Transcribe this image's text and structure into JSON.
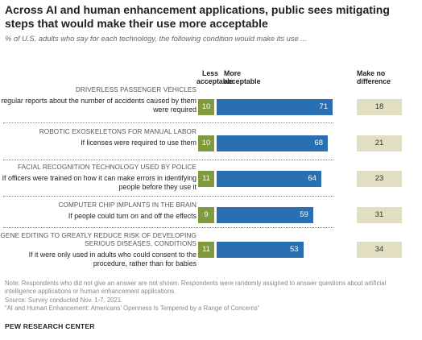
{
  "title": "Across AI and human enhancement applications, public sees mitigating steps that would make their use more acceptable",
  "subtitle": "% of U.S. adults who say for each technology, the following condition would make its use ...",
  "headers": {
    "less": "Less acceptable",
    "more": "More acceptable",
    "no_diff": "Make no difference"
  },
  "colors": {
    "less": "#7f9b3d",
    "more": "#2a6fb1",
    "no_diff": "#e2dec2"
  },
  "chart_data": {
    "type": "bar",
    "categories": [
      "DRIVERLESS PASSENGER VEHICLES",
      "ROBOTIC EXOSKELETONS FOR MANUAL LABOR",
      "FACIAL RECOGNITION TECHNOLOGY USED BY POLICE",
      "COMPUTER CHIP IMPLANTS IN THE BRAIN",
      "GENE EDITING TO GREATLY REDUCE RISK OF DEVELOPING SERIOUS DISEASES, CONDITIONS"
    ],
    "conditions": [
      "If regular reports about the number of accidents caused by them were required",
      "If licenses were required to use them",
      "If officers were trained on how it can make errors in identifying people before they use it",
      "If people could turn on and off the effects",
      "If it were only used in adults who could consent to the procedure, rather than for babies"
    ],
    "series": [
      {
        "name": "Less acceptable",
        "values": [
          10,
          10,
          11,
          9,
          11
        ]
      },
      {
        "name": "More acceptable",
        "values": [
          71,
          68,
          64,
          59,
          53
        ]
      },
      {
        "name": "Make no difference",
        "values": [
          18,
          21,
          23,
          31,
          34
        ]
      }
    ]
  },
  "notes": [
    "Note: Respondents who did not give an answer are not shown. Respondents were randomly assigned to answer questions about artificial intelligence applications or human enhancement applications.",
    "Source: Survey conducted Nov. 1-7, 2021.",
    "“AI and Human Enhancement: Americans’ Openness Is Tempered by a Range of Concerns”"
  ],
  "brand": "PEW RESEARCH CENTER"
}
